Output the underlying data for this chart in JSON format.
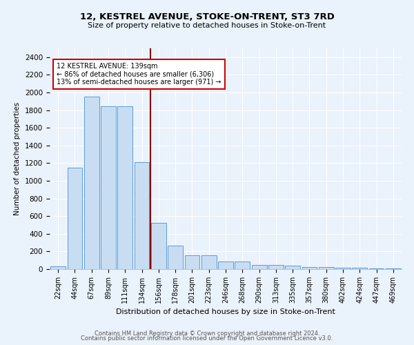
{
  "title1": "12, KESTREL AVENUE, STOKE-ON-TRENT, ST3 7RD",
  "title2": "Size of property relative to detached houses in Stoke-on-Trent",
  "xlabel": "Distribution of detached houses by size in Stoke-on-Trent",
  "ylabel": "Number of detached properties",
  "bar_labels": [
    "22sqm",
    "44sqm",
    "67sqm",
    "89sqm",
    "111sqm",
    "134sqm",
    "156sqm",
    "178sqm",
    "201sqm",
    "223sqm",
    "246sqm",
    "268sqm",
    "290sqm",
    "313sqm",
    "335sqm",
    "357sqm",
    "380sqm",
    "402sqm",
    "424sqm",
    "447sqm",
    "469sqm"
  ],
  "bar_values": [
    30,
    1150,
    1950,
    1840,
    1840,
    1210,
    520,
    265,
    155,
    155,
    85,
    85,
    45,
    45,
    38,
    20,
    20,
    15,
    15,
    10,
    10
  ],
  "bar_color": "#c9ddf2",
  "bar_edge_color": "#5b9bd5",
  "vline_x": 5.5,
  "vline_color": "#8b0000",
  "annotation_title": "12 KESTREL AVENUE: 139sqm",
  "annotation_line1": "← 86% of detached houses are smaller (6,306)",
  "annotation_line2": "13% of semi-detached houses are larger (971) →",
  "annotation_box_color": "#ffffff",
  "annotation_box_edge": "#cc0000",
  "ylim": [
    0,
    2500
  ],
  "yticks": [
    0,
    200,
    400,
    600,
    800,
    1000,
    1200,
    1400,
    1600,
    1800,
    2000,
    2200,
    2400
  ],
  "footnote1": "Contains HM Land Registry data © Crown copyright and database right 2024.",
  "footnote2": "Contains public sector information licensed under the Open Government Licence v3.0.",
  "bg_color": "#eaf2fb"
}
